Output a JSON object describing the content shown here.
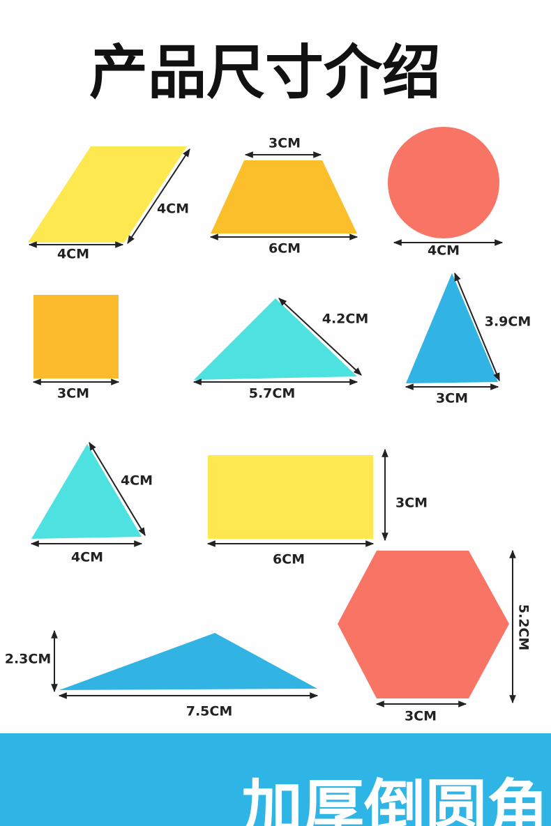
{
  "title": "产品尺寸介绍",
  "shapes": [
    {
      "labels": [
        "4CM",
        "4CM"
      ]
    },
    {
      "labels": [
        "3CM",
        "6CM"
      ]
    },
    {
      "labels": [
        "4CM"
      ]
    },
    {
      "labels": [
        "3CM"
      ]
    },
    {
      "labels": [
        "4.2CM",
        "5.7CM"
      ]
    },
    {
      "labels": [
        "3.9CM",
        "3CM"
      ]
    },
    {
      "labels": [
        "4CM",
        "4CM"
      ]
    },
    {
      "labels": [
        "3CM",
        "6CM"
      ]
    },
    {
      "labels": [
        "5.2CM",
        "3CM"
      ]
    },
    {
      "labels": [
        "2.3CM",
        "7.5CM"
      ]
    }
  ],
  "banner": "加厚倒圆角"
}
